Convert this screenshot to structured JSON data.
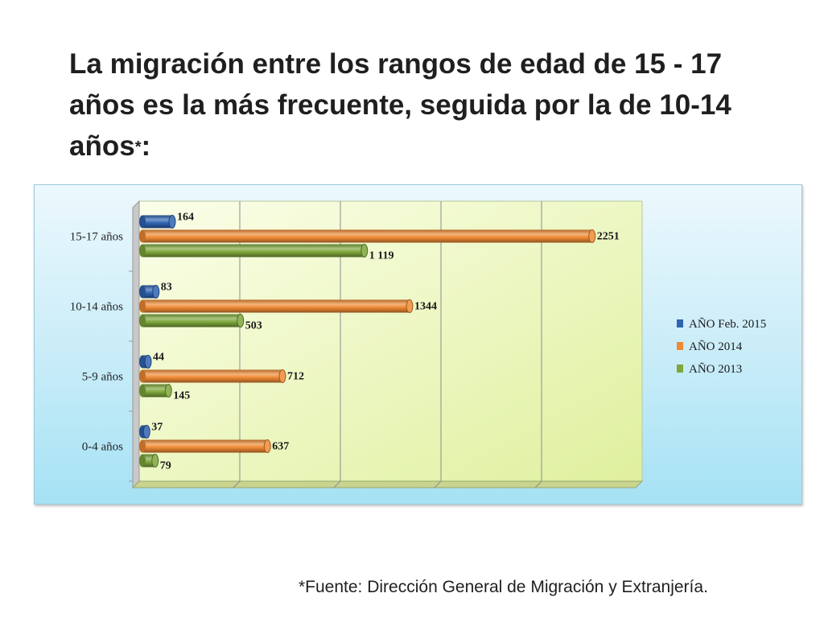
{
  "slide": {
    "title_main": "La migración  entre los rangos de edad de 15 - 17 años es la más frecuente, seguida por la de 10-14 años",
    "title_star": "*",
    "title_colon": ":",
    "source_note": "*Fuente: Dirección General de Migración y Extranjería."
  },
  "colors": {
    "feb2015": "#2f64b2",
    "y2014": "#f08a34",
    "y2013": "#7ea63a",
    "plot_wall": "#eaf6c4",
    "frame_bg": "#c8ecf8"
  },
  "chart_data": {
    "type": "bar",
    "orientation": "horizontal",
    "style": "3d-cylinder",
    "categories": [
      "15-17 años",
      "10-14 años",
      "5-9 años",
      "0-4 años"
    ],
    "series": [
      {
        "name": "AÑO Feb. 2015",
        "values": [
          164,
          83,
          44,
          37
        ],
        "labels": [
          "164",
          "83",
          "44",
          "37"
        ]
      },
      {
        "name": "AÑO 2014",
        "values": [
          2251,
          1344,
          712,
          637
        ],
        "labels": [
          "2251",
          "1344",
          "712",
          "637"
        ]
      },
      {
        "name": "AÑO 2013",
        "values": [
          1119,
          503,
          145,
          79
        ],
        "labels": [
          "1 119",
          "503",
          "145",
          "79"
        ]
      }
    ],
    "xlim": [
      0,
      2500
    ],
    "grid": true,
    "legend": "right",
    "title": "",
    "xlabel": "",
    "ylabel": ""
  }
}
